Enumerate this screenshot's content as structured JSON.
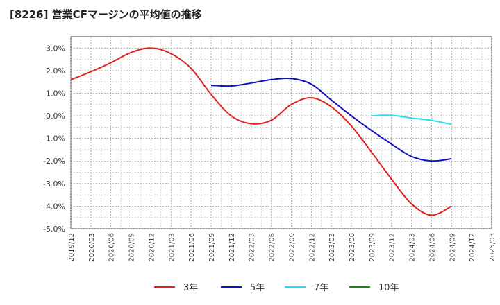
{
  "title": "[8226]  営業CFマージンの平均値の推移",
  "chart_data": {
    "type": "line",
    "title": "[8226]  営業CFマージンの平均値の推移",
    "xlabel": "",
    "ylabel": "",
    "ylim": [
      -5.0,
      3.5
    ],
    "grid": true,
    "legend_position": "bottom",
    "y_ticks": [
      "3.0%",
      "2.0%",
      "1.0%",
      "0.0%",
      "-1.0%",
      "-2.0%",
      "-3.0%",
      "-4.0%",
      "-5.0%"
    ],
    "y_tick_values": [
      3,
      2,
      1,
      0,
      -1,
      -2,
      -3,
      -4,
      -5
    ],
    "x_ticks": [
      "2019/12",
      "2020/03",
      "2020/06",
      "2020/09",
      "2020/12",
      "2021/03",
      "2021/06",
      "2021/09",
      "2021/12",
      "2022/03",
      "2022/06",
      "2022/09",
      "2022/12",
      "2023/03",
      "2023/06",
      "2023/09",
      "2023/12",
      "2024/03",
      "2024/06",
      "2024/09",
      "2024/12",
      "2025/03"
    ],
    "series": [
      {
        "name": "3年",
        "color": "#e02020",
        "x": [
          "2019/12",
          "2020/03",
          "2020/06",
          "2020/09",
          "2020/12",
          "2021/03",
          "2021/06",
          "2021/09",
          "2021/12",
          "2022/03",
          "2022/06",
          "2022/09",
          "2022/12",
          "2023/03",
          "2023/06",
          "2023/09",
          "2023/12",
          "2024/03",
          "2024/06",
          "2024/09"
        ],
        "values": [
          1.6,
          1.95,
          2.35,
          2.8,
          3.0,
          2.75,
          2.1,
          0.95,
          0.0,
          -0.35,
          -0.2,
          0.5,
          0.8,
          0.4,
          -0.45,
          -1.6,
          -2.8,
          -3.9,
          -4.4,
          -4.0
        ]
      },
      {
        "name": "5年",
        "color": "#1010c0",
        "x": [
          "2021/09",
          "2021/12",
          "2022/03",
          "2022/06",
          "2022/09",
          "2022/12",
          "2023/03",
          "2023/06",
          "2023/09",
          "2023/12",
          "2024/03",
          "2024/06",
          "2024/09"
        ],
        "values": [
          1.35,
          1.32,
          1.45,
          1.6,
          1.65,
          1.4,
          0.7,
          0.0,
          -0.65,
          -1.25,
          -1.8,
          -2.0,
          -1.9
        ]
      },
      {
        "name": "7年",
        "color": "#20e0f0",
        "x": [
          "2023/09",
          "2023/12",
          "2024/03",
          "2024/06",
          "2024/09"
        ],
        "values": [
          0.0,
          0.02,
          -0.1,
          -0.2,
          -0.38
        ]
      },
      {
        "name": "10年",
        "color": "#208020",
        "x": [],
        "values": []
      }
    ]
  }
}
